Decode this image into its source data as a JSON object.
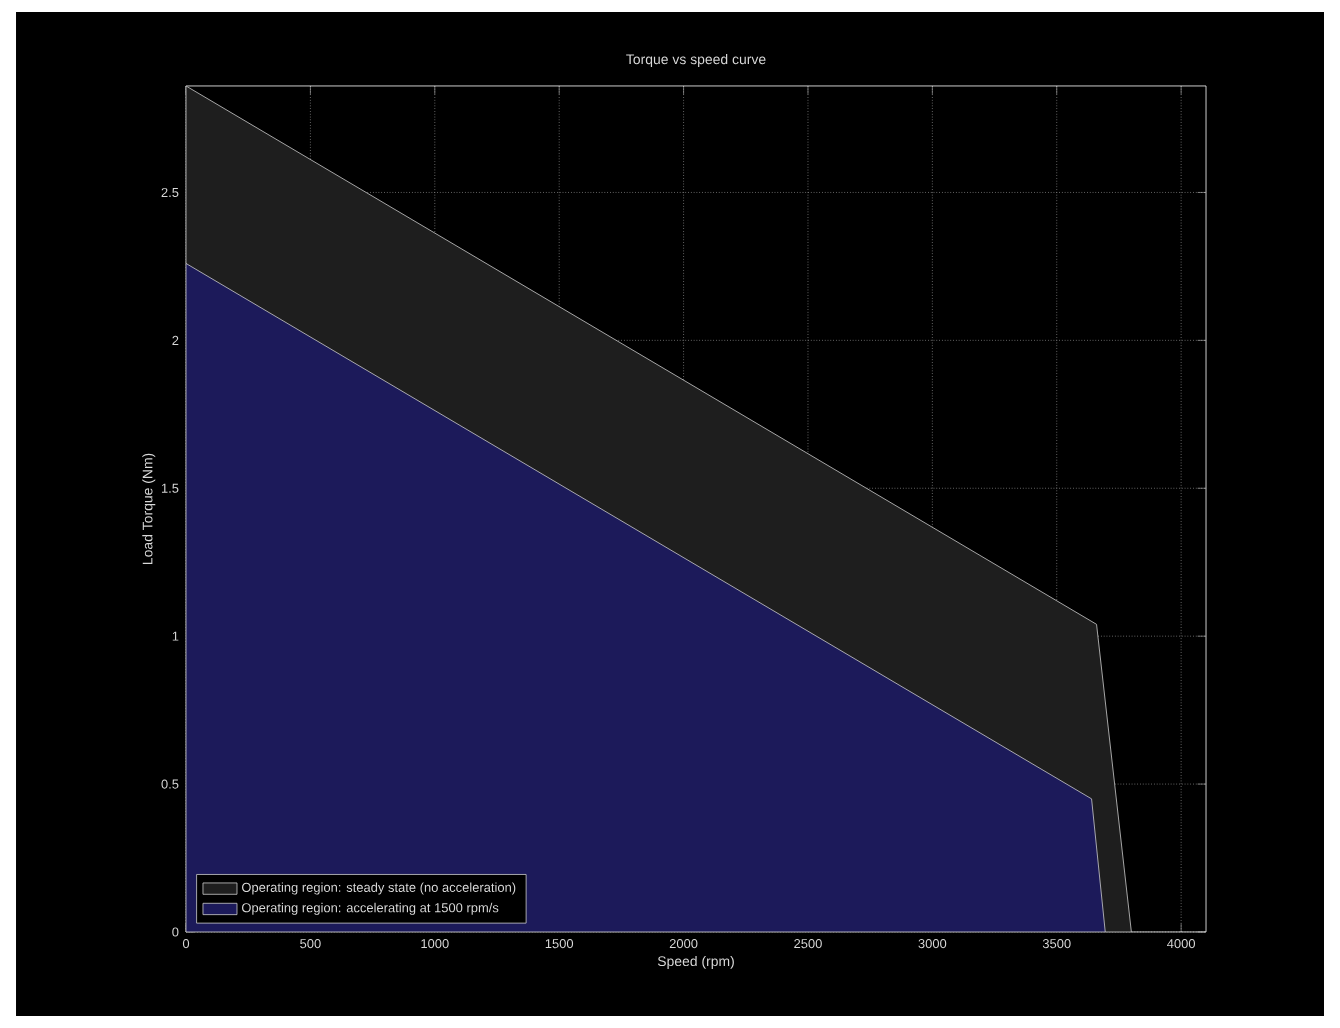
{
  "chart_data": {
    "type": "area",
    "title": "Torque vs speed curve",
    "xlabel": "Speed (rpm)",
    "ylabel": "Load Torque (Nm)",
    "xlim": [
      0,
      4100
    ],
    "ylim": [
      0,
      2.86
    ],
    "xticks": [
      0,
      500,
      1000,
      1500,
      2000,
      2500,
      3000,
      3500,
      4000
    ],
    "yticks": [
      0,
      0.5,
      1,
      1.5,
      2,
      2.5
    ],
    "grid": true,
    "legend": "bottom left",
    "series": [
      {
        "name": "Operating region: steady state (no acceleration)",
        "color": "#1e1e1e",
        "x": [
          0,
          3660,
          3800
        ],
        "values": [
          2.86,
          1.04,
          0
        ]
      },
      {
        "name": "Operating region: accelerating at 1500 rpm/s",
        "color": "#1c1a5a",
        "x": [
          0,
          3640,
          3695
        ],
        "values": [
          2.26,
          0.45,
          0
        ]
      }
    ]
  }
}
